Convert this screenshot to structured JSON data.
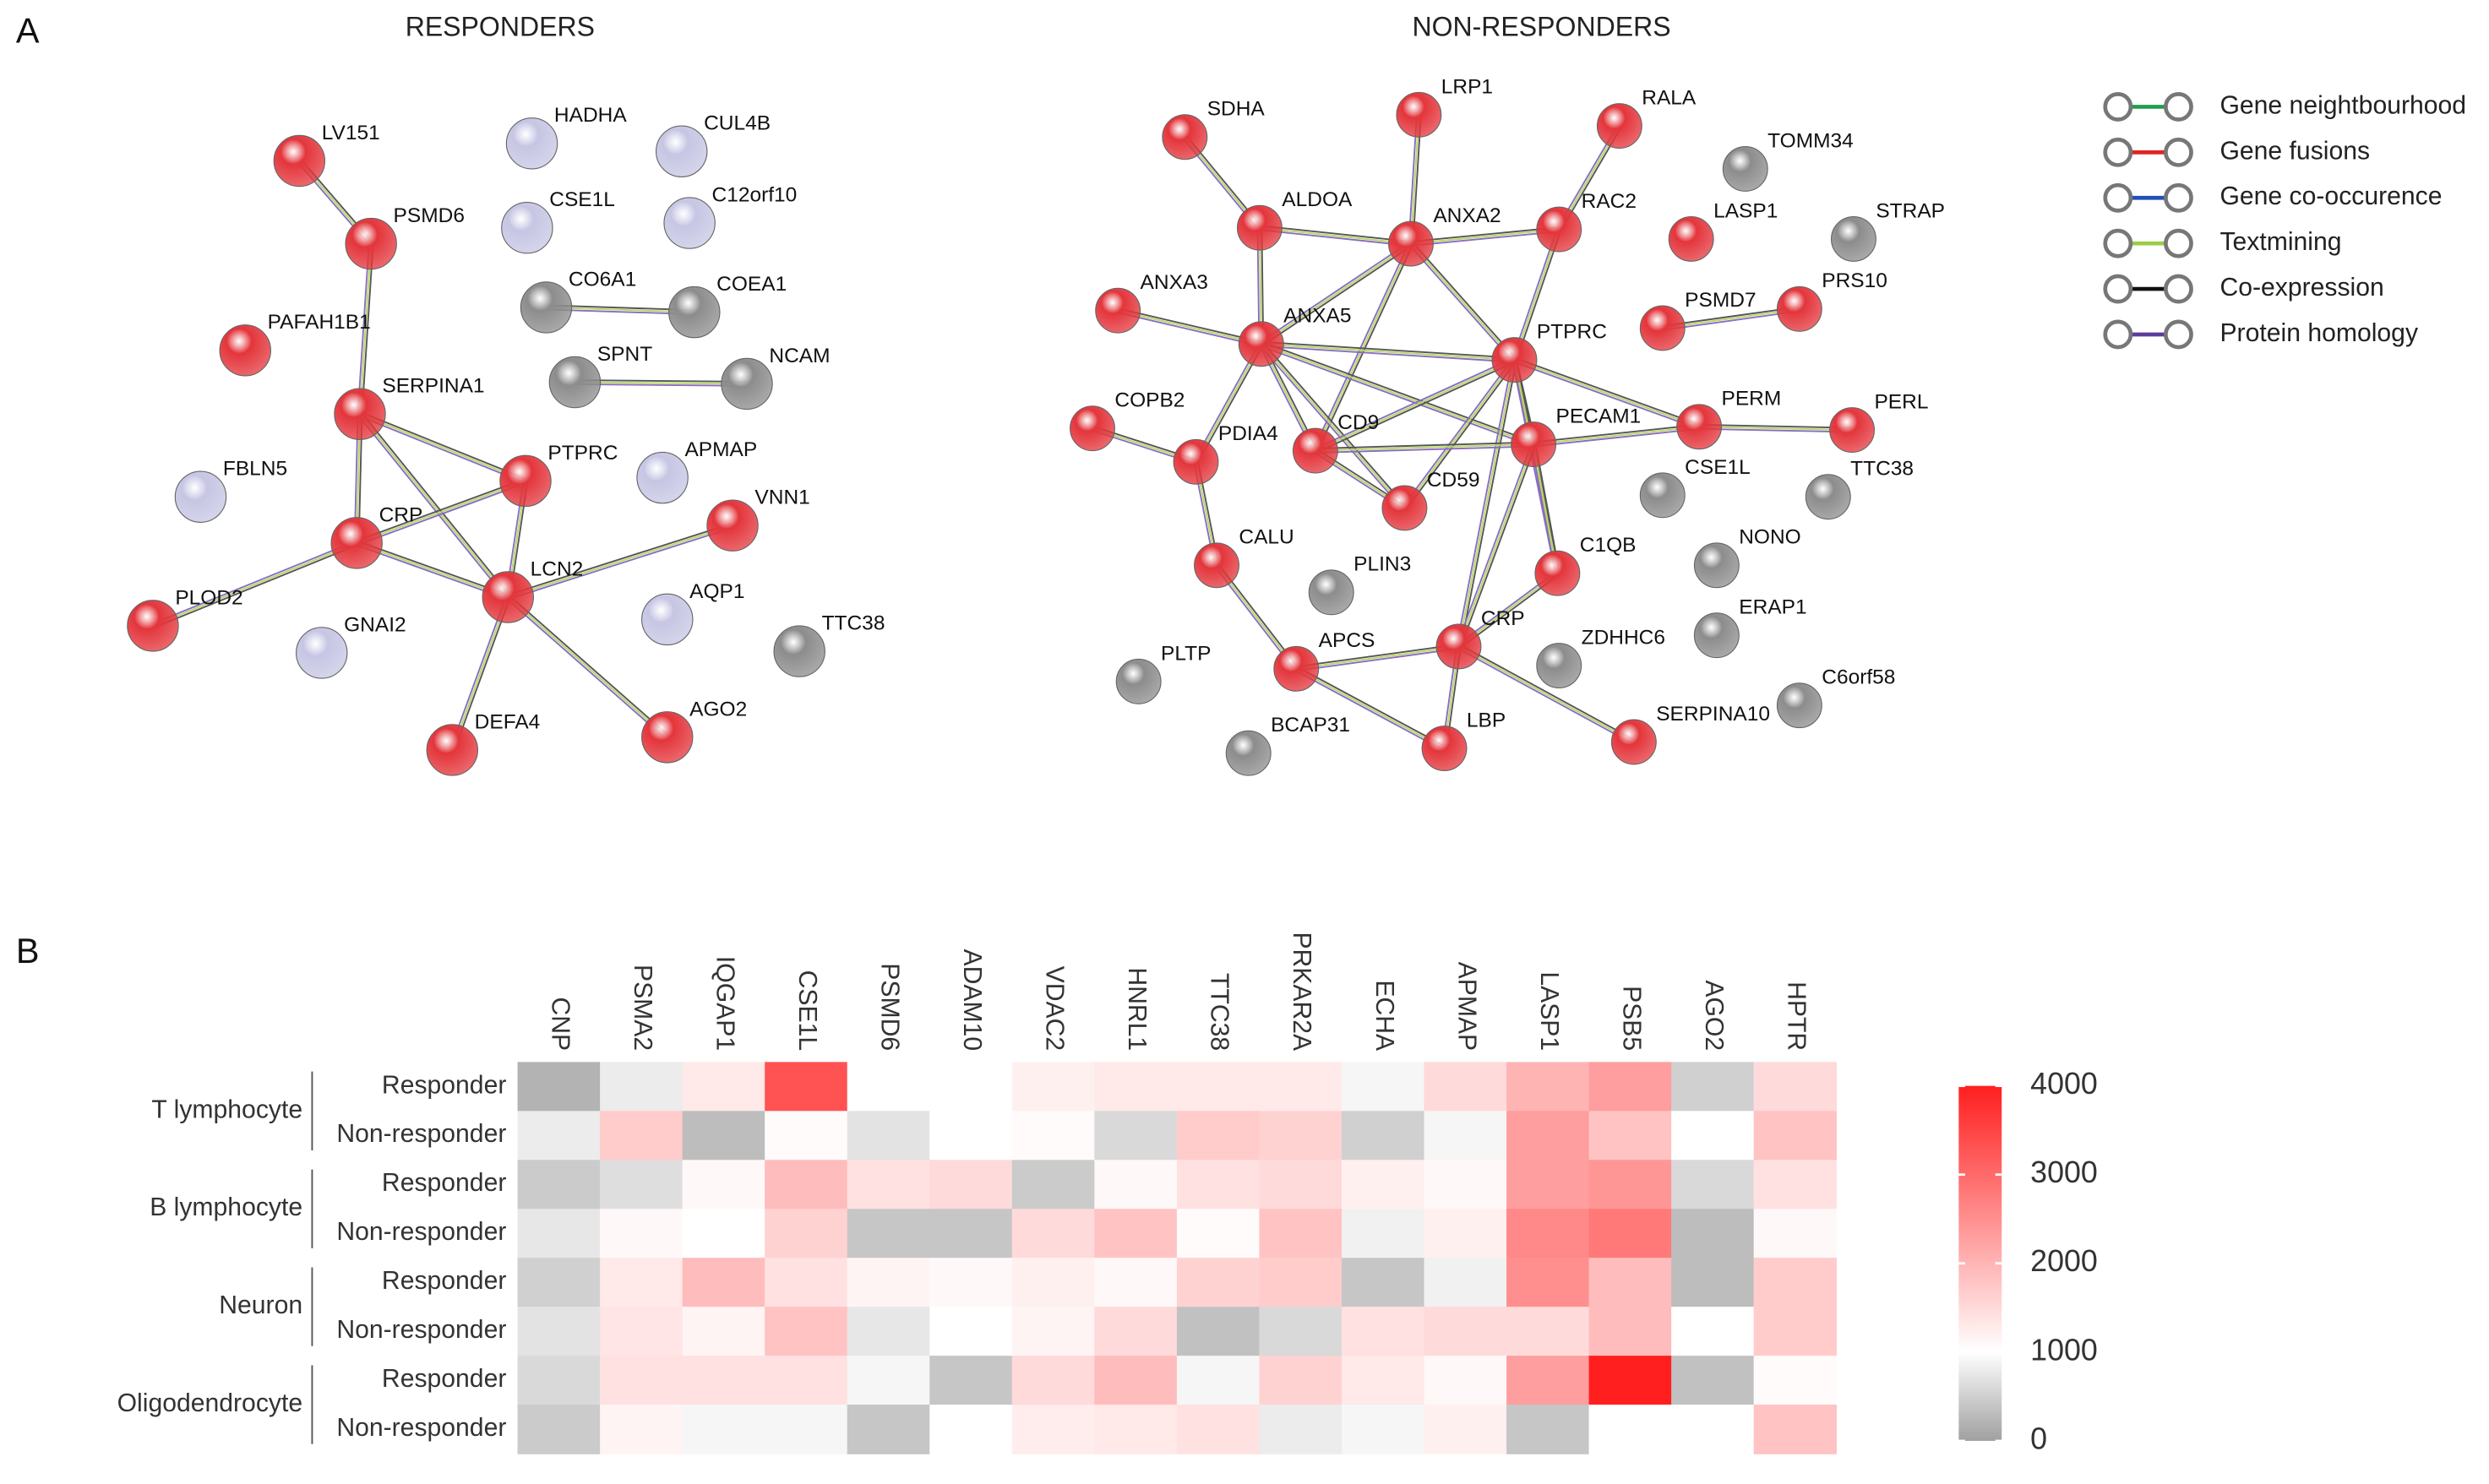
{
  "panels": [
    "A",
    "B"
  ],
  "networks": [
    {
      "title": "RESPONDERS",
      "nodes": [
        {
          "label": "LV151",
          "color": "#e3353b"
        },
        {
          "label": "PSMD6",
          "color": "#e3353b"
        },
        {
          "label": "PAFAH1B1",
          "color": "#e3353b"
        },
        {
          "label": "SERPINA1",
          "color": "#e3353b"
        },
        {
          "label": "CRP",
          "color": "#e3353b"
        },
        {
          "label": "PTPRC",
          "color": "#e3353b"
        },
        {
          "label": "LCN2",
          "color": "#e3353b"
        },
        {
          "label": "FBLN5",
          "color": "#c6c6e4"
        },
        {
          "label": "PLOD2",
          "color": "#e3353b"
        },
        {
          "label": "GNAI2",
          "color": "#c6c6e4"
        },
        {
          "label": "DEFA4",
          "color": "#e3353b"
        },
        {
          "label": "AGO2",
          "color": "#e3353b"
        },
        {
          "label": "VNN1",
          "color": "#e3353b"
        },
        {
          "label": "APMAP",
          "color": "#c6c6e4"
        },
        {
          "label": "AQP1",
          "color": "#c6c6e4"
        },
        {
          "label": "TTC38",
          "color": "#8c8c8c"
        },
        {
          "label": "HADHA",
          "color": "#c6c6e4"
        },
        {
          "label": "CUL4B",
          "color": "#c6c6e4"
        },
        {
          "label": "CSE1L",
          "color": "#c6c6e4"
        },
        {
          "label": "C12orf10",
          "color": "#c6c6e4"
        },
        {
          "label": "CO6A1",
          "color": "#8c8c8c"
        },
        {
          "label": "COEA1",
          "color": "#8c8c8c"
        },
        {
          "label": "SPNT",
          "color": "#8c8c8c"
        },
        {
          "label": "NCAM",
          "color": "#8c8c8c"
        }
      ]
    },
    {
      "title": "NON-RESPONDERS",
      "nodes": [
        {
          "label": "SDHA",
          "color": "#e3353b"
        },
        {
          "label": "LRP1",
          "color": "#e3353b"
        },
        {
          "label": "RALA",
          "color": "#e3353b"
        },
        {
          "label": "TOMM34",
          "color": "#8c8c8c"
        },
        {
          "label": "ALDOA",
          "color": "#e3353b"
        },
        {
          "label": "ANXA2",
          "color": "#e3353b"
        },
        {
          "label": "RAC2",
          "color": "#e3353b"
        },
        {
          "label": "LASP1",
          "color": "#e3353b"
        },
        {
          "label": "STRAP",
          "color": "#8c8c8c"
        },
        {
          "label": "ANXA3",
          "color": "#e3353b"
        },
        {
          "label": "ANXA5",
          "color": "#e3353b"
        },
        {
          "label": "PTPRC",
          "color": "#e3353b"
        },
        {
          "label": "PSMD7",
          "color": "#e3353b"
        },
        {
          "label": "PRS10",
          "color": "#e3353b"
        },
        {
          "label": "COPB2",
          "color": "#e3353b"
        },
        {
          "label": "PDIA4",
          "color": "#e3353b"
        },
        {
          "label": "CD9",
          "color": "#e3353b"
        },
        {
          "label": "PECAM1",
          "color": "#e3353b"
        },
        {
          "label": "PERM",
          "color": "#e3353b"
        },
        {
          "label": "PERL",
          "color": "#e3353b"
        },
        {
          "label": "CD59",
          "color": "#e3353b"
        },
        {
          "label": "CSE1L",
          "color": "#8c8c8c"
        },
        {
          "label": "TTC38",
          "color": "#8c8c8c"
        },
        {
          "label": "CALU",
          "color": "#e3353b"
        },
        {
          "label": "C1QB",
          "color": "#e3353b"
        },
        {
          "label": "NONO",
          "color": "#8c8c8c"
        },
        {
          "label": "PLIN3",
          "color": "#8c8c8c"
        },
        {
          "label": "CRP",
          "color": "#e3353b"
        },
        {
          "label": "APCS",
          "color": "#e3353b"
        },
        {
          "label": "ERAP1",
          "color": "#8c8c8c"
        },
        {
          "label": "ZDHHC6",
          "color": "#8c8c8c"
        },
        {
          "label": "PLTP",
          "color": "#8c8c8c"
        },
        {
          "label": "C6orf58",
          "color": "#8c8c8c"
        },
        {
          "label": "SERPINA10",
          "color": "#e3353b"
        },
        {
          "label": "LBP",
          "color": "#e3353b"
        },
        {
          "label": "BCAP31",
          "color": "#8c8c8c"
        }
      ]
    }
  ],
  "legend": [
    {
      "label": "Gene neightbourhood",
      "color": "#1f9e4a"
    },
    {
      "label": "Gene fusions",
      "color": "#e02424"
    },
    {
      "label": "Gene co-occurence",
      "color": "#2350b8"
    },
    {
      "label": "Textmining",
      "color": "#9acd45"
    },
    {
      "label": "Co-expression",
      "color": "#111111"
    },
    {
      "label": "Protein homology",
      "color": "#5c3c9c"
    }
  ],
  "chart_data": {
    "type": "heatmap",
    "columns": [
      "CNP",
      "PSMA2",
      "IQGAP1",
      "CSE1L",
      "PSMD6",
      "ADAM10",
      "VDAC2",
      "HNRL1",
      "TTC38",
      "PRKAR2A",
      "ECHA",
      "APMAP",
      "LASP1",
      "PSB5",
      "AGO2",
      "HPTR"
    ],
    "groups": [
      "T lymphocyte",
      "B lymphocyte",
      "Neuron",
      "Oligodendrocyte"
    ],
    "rows": [
      "Responder",
      "Non-responder",
      "Responder",
      "Non-responder",
      "Responder",
      "Non-responder",
      "Responder",
      "Non-responder"
    ],
    "values": [
      [
        200,
        800,
        1300,
        3300,
        1000,
        1000,
        1200,
        1300,
        1300,
        1300,
        900,
        1500,
        2000,
        2300,
        500,
        1500
      ],
      [
        800,
        1700,
        300,
        1050,
        700,
        1000,
        1050,
        600,
        1700,
        1600,
        500,
        900,
        2300,
        1800,
        1000,
        1800
      ],
      [
        450,
        650,
        1100,
        1900,
        1400,
        1500,
        450,
        1100,
        1400,
        1500,
        1200,
        1100,
        2300,
        2400,
        600,
        1400
      ],
      [
        750,
        1100,
        1000,
        1600,
        400,
        400,
        1500,
        1800,
        1050,
        1800,
        850,
        1200,
        2600,
        2800,
        300,
        1100
      ],
      [
        500,
        1300,
        1900,
        1400,
        1150,
        1100,
        1200,
        1100,
        1600,
        1700,
        400,
        850,
        2500,
        1900,
        300,
        1700
      ],
      [
        700,
        1350,
        1150,
        1800,
        750,
        1000,
        1150,
        1500,
        350,
        600,
        1400,
        1500,
        1500,
        1900,
        1000,
        1700
      ],
      [
        600,
        1400,
        1400,
        1400,
        900,
        400,
        1500,
        1900,
        900,
        1600,
        1300,
        1100,
        2300,
        4000,
        350,
        1050
      ],
      [
        450,
        1150,
        900,
        900,
        400,
        1000,
        1250,
        1300,
        1400,
        800,
        900,
        1200,
        400,
        1000,
        1000,
        1800
      ]
    ],
    "color_stops": [
      {
        "value": 0,
        "color": "#a0a0a0"
      },
      {
        "value": 1000,
        "color": "#ffffff"
      },
      {
        "value": 4000,
        "color": "#ff1f1f"
      }
    ],
    "zlim": [
      0,
      4000
    ],
    "zticks": [
      0,
      1000,
      2000,
      3000,
      4000
    ]
  }
}
